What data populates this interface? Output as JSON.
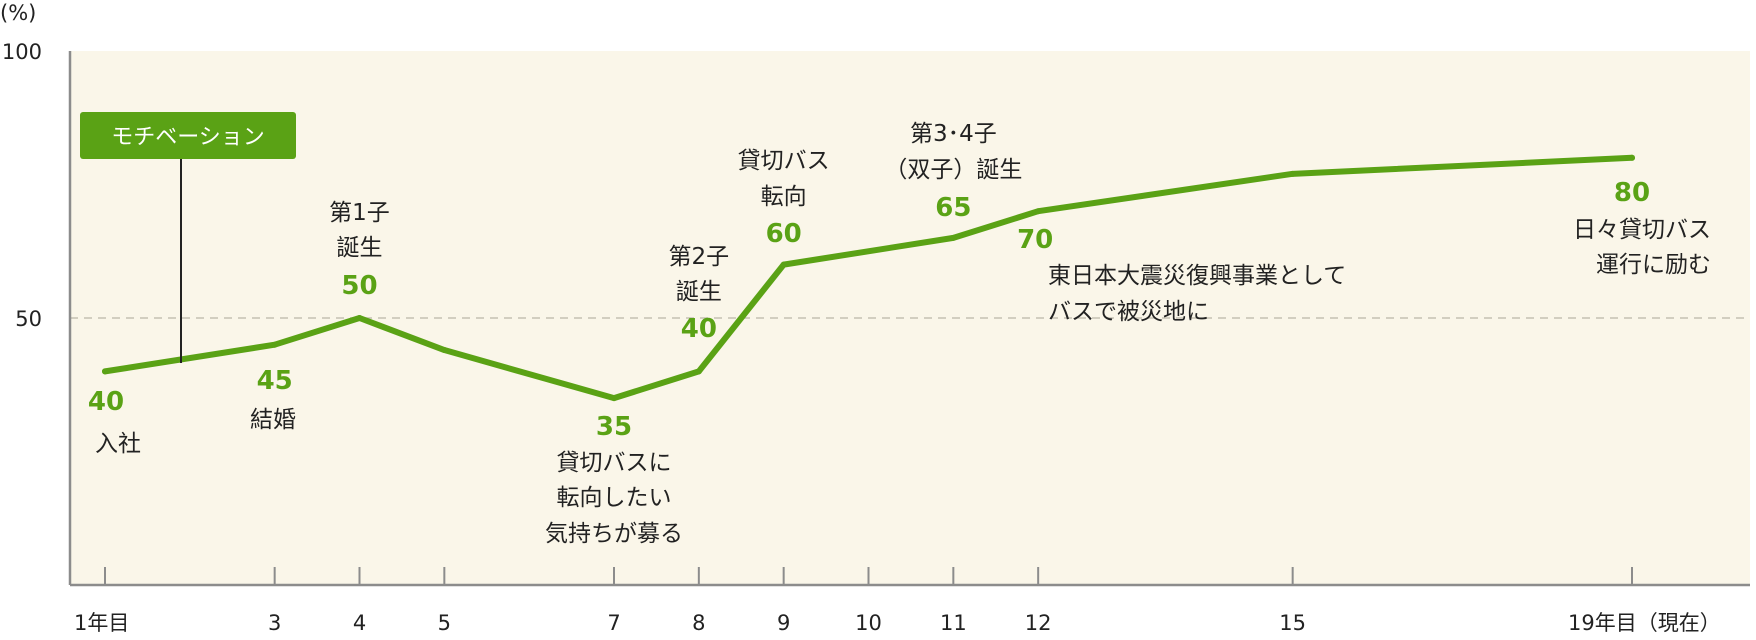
{
  "chart_data": {
    "type": "line",
    "ylabel": "(%)",
    "ylim": [
      0,
      100
    ],
    "yticks": [
      {
        "value": 100,
        "label": "100"
      },
      {
        "value": 50,
        "label": "50"
      }
    ],
    "xlim": [
      0,
      19.8
    ],
    "xticks": [
      {
        "value": 1,
        "label": "1年目"
      },
      {
        "value": 3,
        "label": "3"
      },
      {
        "value": 4,
        "label": "4"
      },
      {
        "value": 5,
        "label": "5"
      },
      {
        "value": 7,
        "label": "7"
      },
      {
        "value": 8,
        "label": "8"
      },
      {
        "value": 9,
        "label": "9"
      },
      {
        "value": 10,
        "label": "10"
      },
      {
        "value": 11,
        "label": "11"
      },
      {
        "value": 12,
        "label": "12"
      },
      {
        "value": 15,
        "label": "15"
      },
      {
        "value": 19,
        "label": "19年目（現在）"
      }
    ],
    "series": [
      {
        "name": "モチベーション",
        "color": "#5aa215",
        "points": [
          {
            "x": 1,
            "y": 40
          },
          {
            "x": 3,
            "y": 45
          },
          {
            "x": 4,
            "y": 50
          },
          {
            "x": 5,
            "y": 44
          },
          {
            "x": 7,
            "y": 35
          },
          {
            "x": 8,
            "y": 40
          },
          {
            "x": 9,
            "y": 60
          },
          {
            "x": 11,
            "y": 65
          },
          {
            "x": 12,
            "y": 70
          },
          {
            "x": 15,
            "y": 77
          },
          {
            "x": 19,
            "y": 80
          }
        ]
      }
    ],
    "labeled_points": [
      {
        "x": 1,
        "y": 40,
        "value": "40",
        "note": [
          "入社"
        ]
      },
      {
        "x": 3,
        "y": 45,
        "value": "45",
        "note": [
          "結婚"
        ]
      },
      {
        "x": 4,
        "y": 50,
        "value": "50",
        "note": [
          "第1子",
          "誕生"
        ]
      },
      {
        "x": 7,
        "y": 35,
        "value": "35",
        "note": [
          "貸切バスに",
          "転向したい",
          "気持ちが募る"
        ]
      },
      {
        "x": 8,
        "y": 40,
        "value": "40",
        "note": [
          "第2子",
          "誕生"
        ]
      },
      {
        "x": 9,
        "y": 60,
        "value": "60",
        "note": [
          "貸切バス",
          "転向"
        ]
      },
      {
        "x": 11,
        "y": 65,
        "value": "65",
        "note": [
          "第3･4子",
          "（双子）誕生"
        ]
      },
      {
        "x": 12,
        "y": 70,
        "value": "70",
        "note": [
          "東日本大震災復興事業として",
          "バスで被災地に"
        ]
      },
      {
        "x": 19,
        "y": 80,
        "value": "80",
        "note": [
          "日々貸切バス",
          "運行に励む"
        ]
      }
    ],
    "grid": "dashed line at 50",
    "legend": "top-left",
    "colors": {
      "line": "#5aa215",
      "plot_background": "#faf6e9",
      "axis": "#8c8c8c",
      "gridline": "#c4c0b2"
    }
  }
}
